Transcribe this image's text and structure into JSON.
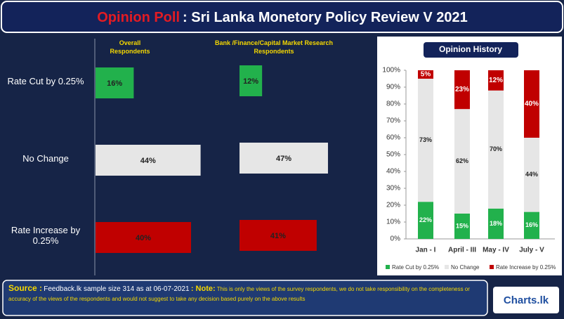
{
  "header": {
    "title_highlight": "Opinion Poll",
    "title": ": Sri Lanka Monetory Policy Review V 2021"
  },
  "chart_data": [
    {
      "type": "hbar",
      "title": "Overall Respondents",
      "categories": [
        "Rate Cut by 0.25%",
        "No Change",
        "Rate Increase by 0.25%"
      ],
      "values": [
        16,
        44,
        40
      ],
      "value_labels": [
        "16%",
        "44%",
        "40%"
      ],
      "colors": [
        "#22b14c",
        "#e6e6e6",
        "#c00000"
      ]
    },
    {
      "type": "hbar",
      "title": "Bank /Finance/Capital Market Research Respondents",
      "values": [
        12,
        47,
        41
      ],
      "value_labels": [
        "12%",
        "47%",
        "41%"
      ],
      "colors": [
        "#22b14c",
        "#e6e6e6",
        "#c00000"
      ]
    },
    {
      "type": "stacked_bar",
      "title": "Opinion History",
      "categories": [
        "Jan - I",
        "April - III",
        "May - IV",
        "July - V"
      ],
      "series": [
        {
          "name": "Rate Cut by 0.25%",
          "color": "#22b14c",
          "values": [
            22,
            15,
            18,
            16
          ],
          "value_labels": [
            "22%",
            "15%",
            "18%",
            "16%"
          ]
        },
        {
          "name": "No Change",
          "color": "#e6e6e6",
          "values": [
            73,
            62,
            70,
            44
          ],
          "value_labels": [
            "73%",
            "62%",
            "70%",
            "44%"
          ]
        },
        {
          "name": "Rate Increase by 0.25%",
          "color": "#c00000",
          "values": [
            5,
            23,
            12,
            40
          ],
          "value_labels": [
            "5%",
            "23%",
            "12%",
            "40%"
          ]
        }
      ],
      "ylim": [
        0,
        100
      ],
      "yticks": [
        {
          "value": 0,
          "label": "0%"
        },
        {
          "value": 10,
          "label": "10%"
        },
        {
          "value": 20,
          "label": "20%"
        },
        {
          "value": 30,
          "label": "30%"
        },
        {
          "value": 40,
          "label": "40%"
        },
        {
          "value": 50,
          "label": "50%"
        },
        {
          "value": 60,
          "label": "60%"
        },
        {
          "value": 70,
          "label": "70%"
        },
        {
          "value": 80,
          "label": "80%"
        },
        {
          "value": 90,
          "label": "90%"
        },
        {
          "value": 100,
          "label": "100%"
        }
      ],
      "legend": "bottom"
    }
  ],
  "footer": {
    "source_label": "Source :",
    "source": "Feedback.lk sample size 314 as at 06-07-2021",
    "note_label": ": Note:",
    "note": "This is only the views of the survey respondents, we do not take responsibility on the completeness or accuracy of the views of the respondents and would not suggest to take any decision based purely on the above results"
  },
  "logo": "Charts.lk"
}
